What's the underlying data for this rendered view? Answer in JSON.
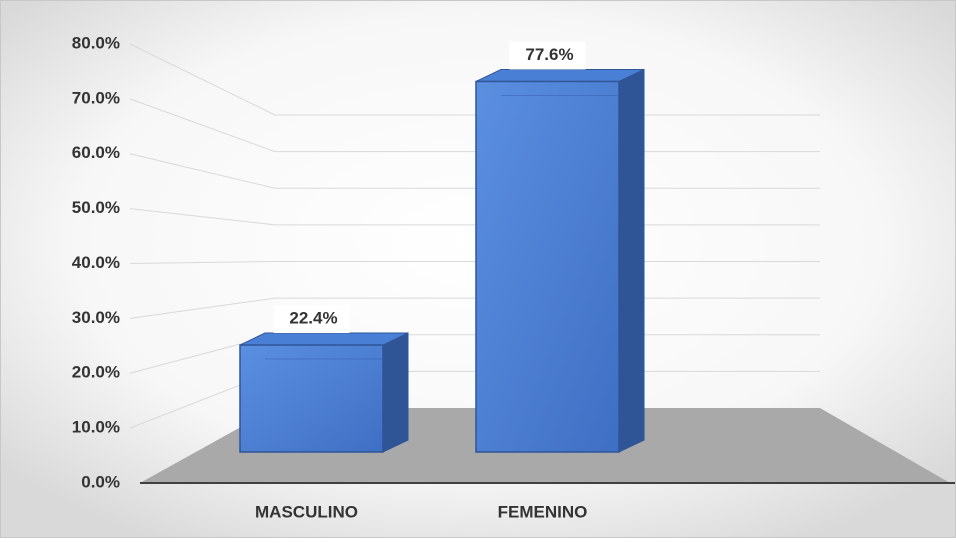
{
  "chart_data": {
    "type": "bar3d",
    "categories": [
      "MASCULINO",
      "FEMENINO"
    ],
    "values": [
      22.4,
      77.6
    ],
    "value_labels": [
      "22.4%",
      "77.6%"
    ],
    "color": "#4a7fd6",
    "ylim": [
      0,
      80
    ],
    "yticks": [
      {
        "value": 0,
        "label": "0.0%"
      },
      {
        "value": 10,
        "label": "10.0%"
      },
      {
        "value": 20,
        "label": "20.0%"
      },
      {
        "value": 30,
        "label": "30.0%"
      },
      {
        "value": 40,
        "label": "40.0%"
      },
      {
        "value": 50,
        "label": "50.0%"
      },
      {
        "value": 60,
        "label": "60.0%"
      },
      {
        "value": 70,
        "label": "70.0%"
      },
      {
        "value": 80,
        "label": "80.0%"
      }
    ],
    "grid": true
  }
}
